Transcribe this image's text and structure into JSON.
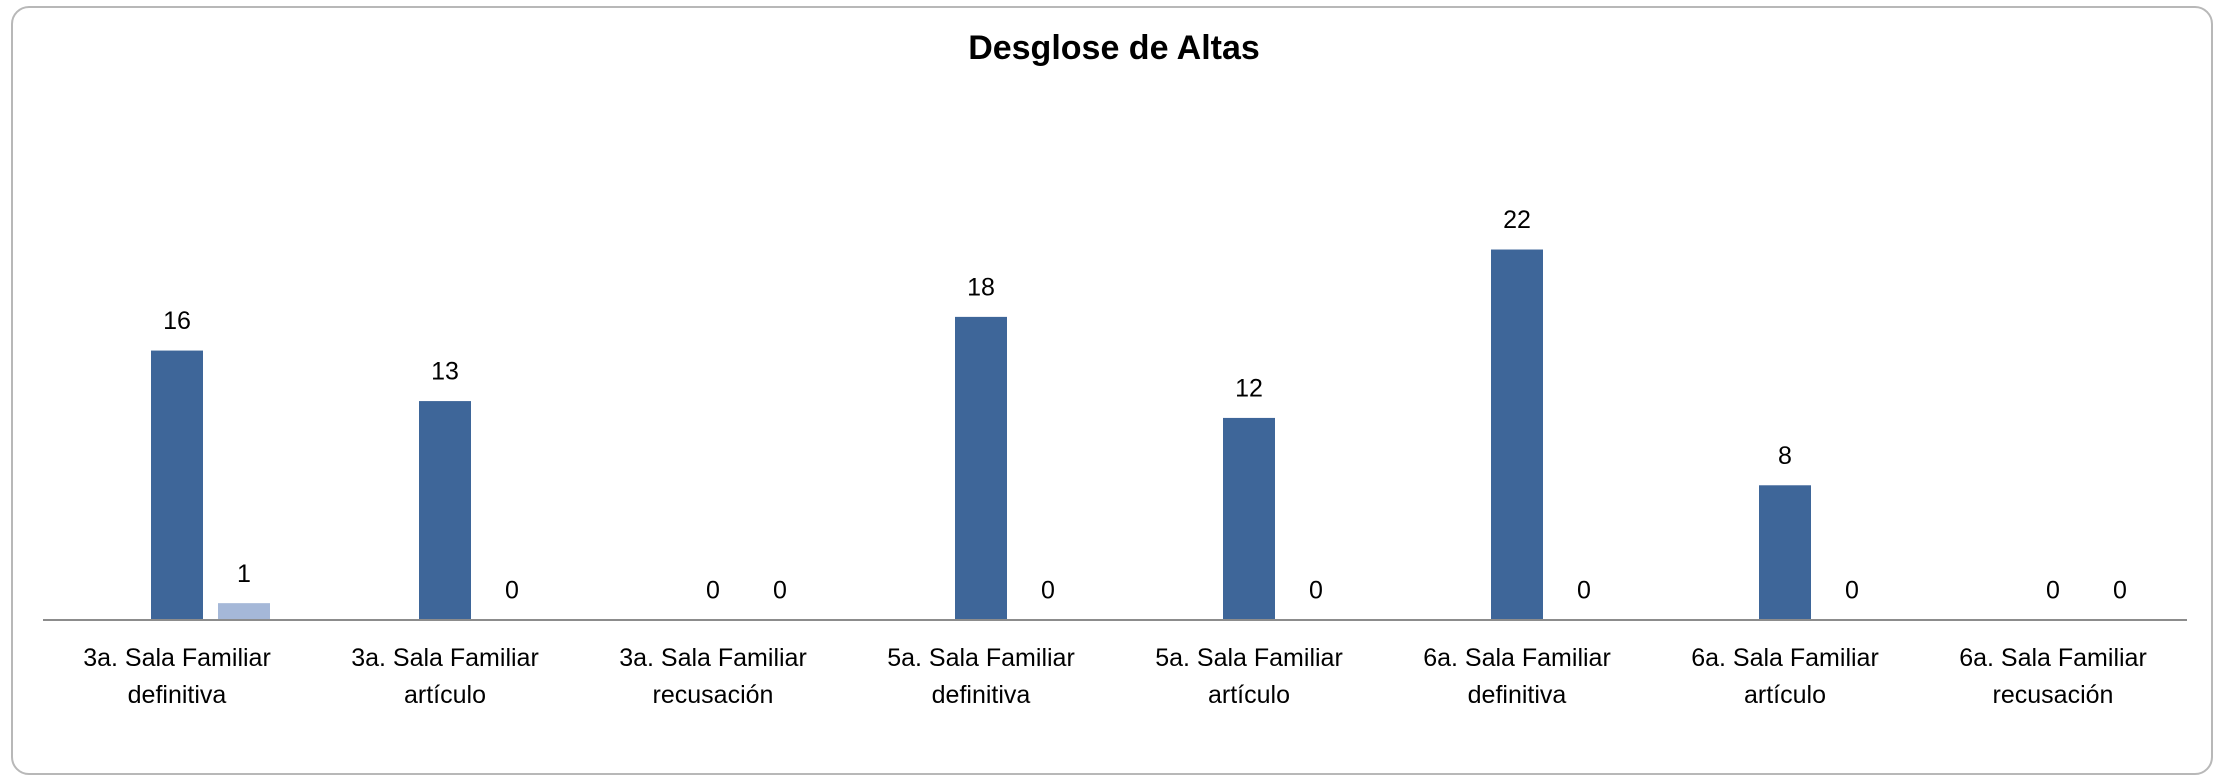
{
  "chart_data": {
    "type": "bar",
    "title": "Desglose de Altas",
    "categories": [
      "3a. Sala Familiar definitiva",
      "3a. Sala Familiar artículo",
      "3a. Sala Familiar recusación",
      "5a. Sala Familiar definitiva",
      "5a. Sala Familiar artículo",
      "6a. Sala Familiar definitiva",
      "6a. Sala Familiar artículo",
      "6a. Sala Familiar recusación"
    ],
    "series": [
      {
        "color": "#3e6699",
        "values": [
          16,
          13,
          0,
          18,
          12,
          22,
          8,
          0
        ]
      },
      {
        "color": "#a5b8d8",
        "values": [
          1,
          0,
          0,
          0,
          0,
          0,
          0,
          0
        ]
      }
    ],
    "ylim": [
      0,
      25
    ],
    "grid": false
  }
}
